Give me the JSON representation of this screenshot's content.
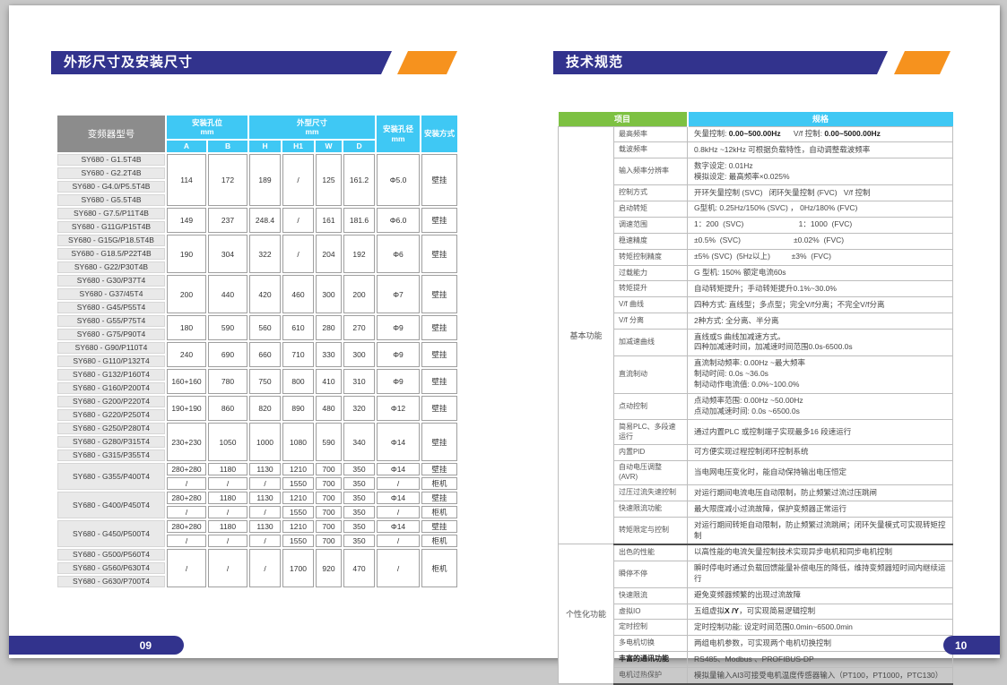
{
  "accent_colors": {
    "header_blue": "#32338d",
    "header_orange": "#f6921e",
    "table_cyan": "#3fc8f4",
    "table_green": "#7dc142",
    "table_gray": "#8c8c8c"
  },
  "left_page": {
    "title": "外形尺寸及安装尺寸",
    "page_number": "09",
    "table": {
      "header": {
        "model": "变频器型号",
        "mount_holes": "安装孔位\nmm",
        "dims": "外型尺寸\nmm",
        "hole_dia": "安装孔径\nmm",
        "mount_type": "安装方式",
        "sub": [
          "A",
          "B",
          "H",
          "H1",
          "W",
          "D"
        ]
      },
      "groups": [
        {
          "models": [
            "SY680 - G1.5T4B",
            "SY680 - G2.2T4B",
            "SY680 - G4.0/P5.5T4B",
            "SY680 - G5.5T4B"
          ],
          "data": [
            [
              "114",
              "172",
              "189",
              "/",
              "125",
              "161.2",
              "Φ5.0",
              "壁挂"
            ]
          ]
        },
        {
          "models": [
            "SY680 - G7.5/P11T4B",
            "SY680 - G11G/P15T4B"
          ],
          "data": [
            [
              "149",
              "237",
              "248.4",
              "/",
              "161",
              "181.6",
              "Φ6.0",
              "壁挂"
            ]
          ]
        },
        {
          "models": [
            "SY680 - G15G/P18.5T4B",
            "SY680 - G18.5/P22T4B",
            "SY680 - G22/P30T4B"
          ],
          "data": [
            [
              "190",
              "304",
              "322",
              "/",
              "204",
              "192",
              "Φ6",
              "壁挂"
            ]
          ]
        },
        {
          "models": [
            "SY680 - G30/P37T4",
            "SY680 - G37/45T4",
            "SY680 - G45/P55T4"
          ],
          "data": [
            [
              "200",
              "440",
              "420",
              "460",
              "300",
              "200",
              "Φ7",
              "壁挂"
            ]
          ]
        },
        {
          "models": [
            "SY680 - G55/P75T4",
            "SY680 - G75/P90T4"
          ],
          "data": [
            [
              "180",
              "590",
              "560",
              "610",
              "280",
              "270",
              "Φ9",
              "壁挂"
            ]
          ]
        },
        {
          "models": [
            "SY680 - G90/P110T4",
            "SY680 - G110/P132T4"
          ],
          "data": [
            [
              "240",
              "690",
              "660",
              "710",
              "330",
              "300",
              "Φ9",
              "壁挂"
            ]
          ]
        },
        {
          "models": [
            "SY680 - G132/P160T4",
            "SY680 - G160/P200T4"
          ],
          "data": [
            [
              "160+160",
              "780",
              "750",
              "800",
              "410",
              "310",
              "Φ9",
              "壁挂"
            ]
          ]
        },
        {
          "models": [
            "SY680 - G200/P220T4",
            "SY680 - G220/P250T4"
          ],
          "data": [
            [
              "190+190",
              "860",
              "820",
              "890",
              "480",
              "320",
              "Φ12",
              "壁挂"
            ]
          ]
        },
        {
          "models": [
            "SY680 - G250/P280T4",
            "SY680 - G280/P315T4",
            "SY680 - G315/P355T4"
          ],
          "data": [
            [
              "230+230",
              "1050",
              "1000",
              "1080",
              "590",
              "340",
              "Φ14",
              "壁挂"
            ]
          ]
        },
        {
          "models": [
            "SY680 - G355/P400T4"
          ],
          "data": [
            [
              "280+280",
              "1180",
              "1130",
              "1210",
              "700",
              "350",
              "Φ14",
              "壁挂"
            ],
            [
              "/",
              "/",
              "/",
              "1550",
              "700",
              "350",
              "/",
              "柜机"
            ]
          ]
        },
        {
          "models": [
            "SY680 - G400/P450T4"
          ],
          "data": [
            [
              "280+280",
              "1180",
              "1130",
              "1210",
              "700",
              "350",
              "Φ14",
              "壁挂"
            ],
            [
              "/",
              "/",
              "/",
              "1550",
              "700",
              "350",
              "/",
              "柜机"
            ]
          ]
        },
        {
          "models": [
            "SY680 - G450/P500T4"
          ],
          "data": [
            [
              "280+280",
              "1180",
              "1130",
              "1210",
              "700",
              "350",
              "Φ14",
              "壁挂"
            ],
            [
              "/",
              "/",
              "/",
              "1550",
              "700",
              "350",
              "/",
              "柜机"
            ]
          ]
        },
        {
          "models": [
            "SY680 - G500/P560T4",
            "SY680 - G560/P630T4",
            "SY680 - G630/P700T4"
          ],
          "data": [
            [
              "/",
              "/",
              "/",
              "1700",
              "920",
              "470",
              "/",
              "柜机"
            ]
          ]
        }
      ]
    }
  },
  "right_page": {
    "title": "技术规范",
    "page_number": "10",
    "table": {
      "header": {
        "item": "项目",
        "spec": "规格"
      },
      "groups": [
        {
          "name": "基本功能",
          "rows": [
            {
              "item": "最高频率",
              "spec": "矢量控制: **0.00~500.00Hz**      V/f 控制: **0.00~5000.00Hz**"
            },
            {
              "item": "载波频率",
              "spec": "0.8kHz ~12kHz 可根据负载特性，自动调整载波频率"
            },
            {
              "item": "输入频率分辨率",
              "spec": "数字设定: 0.01Hz\n模拟设定: 最高频率×0.025%"
            },
            {
              "item": "控制方式",
              "spec": "开环矢量控制 (SVC)   闭环矢量控制 (FVC)   V/f 控制"
            },
            {
              "item": "启动转矩",
              "spec": "G型机: 0.25Hz/150% (SVC) ， 0Hz/180% (FVC)"
            },
            {
              "item": "调速范围",
              "spec": "1：200  (SVC)                          1：1000  (FVC)"
            },
            {
              "item": "稳速精度",
              "spec": "±0.5%  (SVC)                         ±0.02%  (FVC)"
            },
            {
              "item": "转矩控制精度",
              "spec": "±5% (SVC)  (5Hz以上)          ±3%  (FVC)"
            },
            {
              "item": "过载能力",
              "spec": "G 型机: 150% 额定电流60s"
            },
            {
              "item": "转矩提升",
              "spec": "自动转矩提升；手动转矩提升0.1%~30.0%"
            },
            {
              "item": "V/f  曲线",
              "spec": "四种方式: 直线型；多点型；完全V/f分离；不完全V/f分离"
            },
            {
              "item": "V/f  分离",
              "spec": "2种方式: 全分离、半分离"
            },
            {
              "item": "加减速曲线",
              "spec": "直线或S 曲线加减速方式。\n四种加减速时间，加减速时间范围0.0s-6500.0s"
            },
            {
              "item": "直流制动",
              "spec": "直流制动频率: 0.00Hz ~最大频率\n制动时间: 0.0s ~36.0s\n制动动作电流值: 0.0%~100.0%"
            },
            {
              "item": "点动控制",
              "spec": "点动频率范围: 0.00Hz ~50.00Hz\n点动加减速时间: 0.0s ~6500.0s"
            },
            {
              "item": "简易PLC、多段速运行",
              "spec": "通过内置PLC 或控制端子实现最多16 段速运行"
            },
            {
              "item": "内置PID",
              "spec": "可方便实现过程控制闭环控制系统"
            },
            {
              "item": "自动电压调整 (AVR)",
              "spec": "当电网电压变化时，能自动保持输出电压恒定"
            },
            {
              "item": "过压过流失速控制",
              "spec": "对运行期间电流电压自动限制，防止频繁过流过压跳闸"
            },
            {
              "item": "快速限流功能",
              "spec": "最大限度减小过流故障，保护变频器正常运行"
            },
            {
              "item": "转矩限定与控制",
              "spec": "对运行期间转矩自动限制，防止频繁过流跳闸；闭环矢量模式可实现转矩控制"
            }
          ]
        },
        {
          "name": "个性化功能",
          "rows": [
            {
              "item": "出色的性能",
              "spec": "以高性能的电流矢量控制技术实现异步电机和同步电机控制"
            },
            {
              "item": "瞬停不停",
              "spec": "瞬时停电时通过负载回馈能量补偿电压的降低，维持变频器短时间内继续运行"
            },
            {
              "item": "快速限流",
              "spec": "避免变频器频繁的出现过流故障"
            },
            {
              "item": "虚拟IO",
              "spec": "五组虚拟**X /Y**，可实现简易逻辑控制"
            },
            {
              "item": "定时控制",
              "spec": "定时控制功能: 设定时间范围0.0min~6500.0min"
            },
            {
              "item": "多电机切换",
              "spec": "两组电机参数，可实现两个电机切换控制"
            },
            {
              "item": "**丰富的通讯功能**",
              "spec": "RS485、Modbus 、PROFIBUS-DP"
            },
            {
              "item": "电机过热保护",
              "spec": "模拟量输入AI3可接受电机温度传感器输入（PT100，PT1000，PTC130）"
            }
          ]
        }
      ]
    }
  }
}
